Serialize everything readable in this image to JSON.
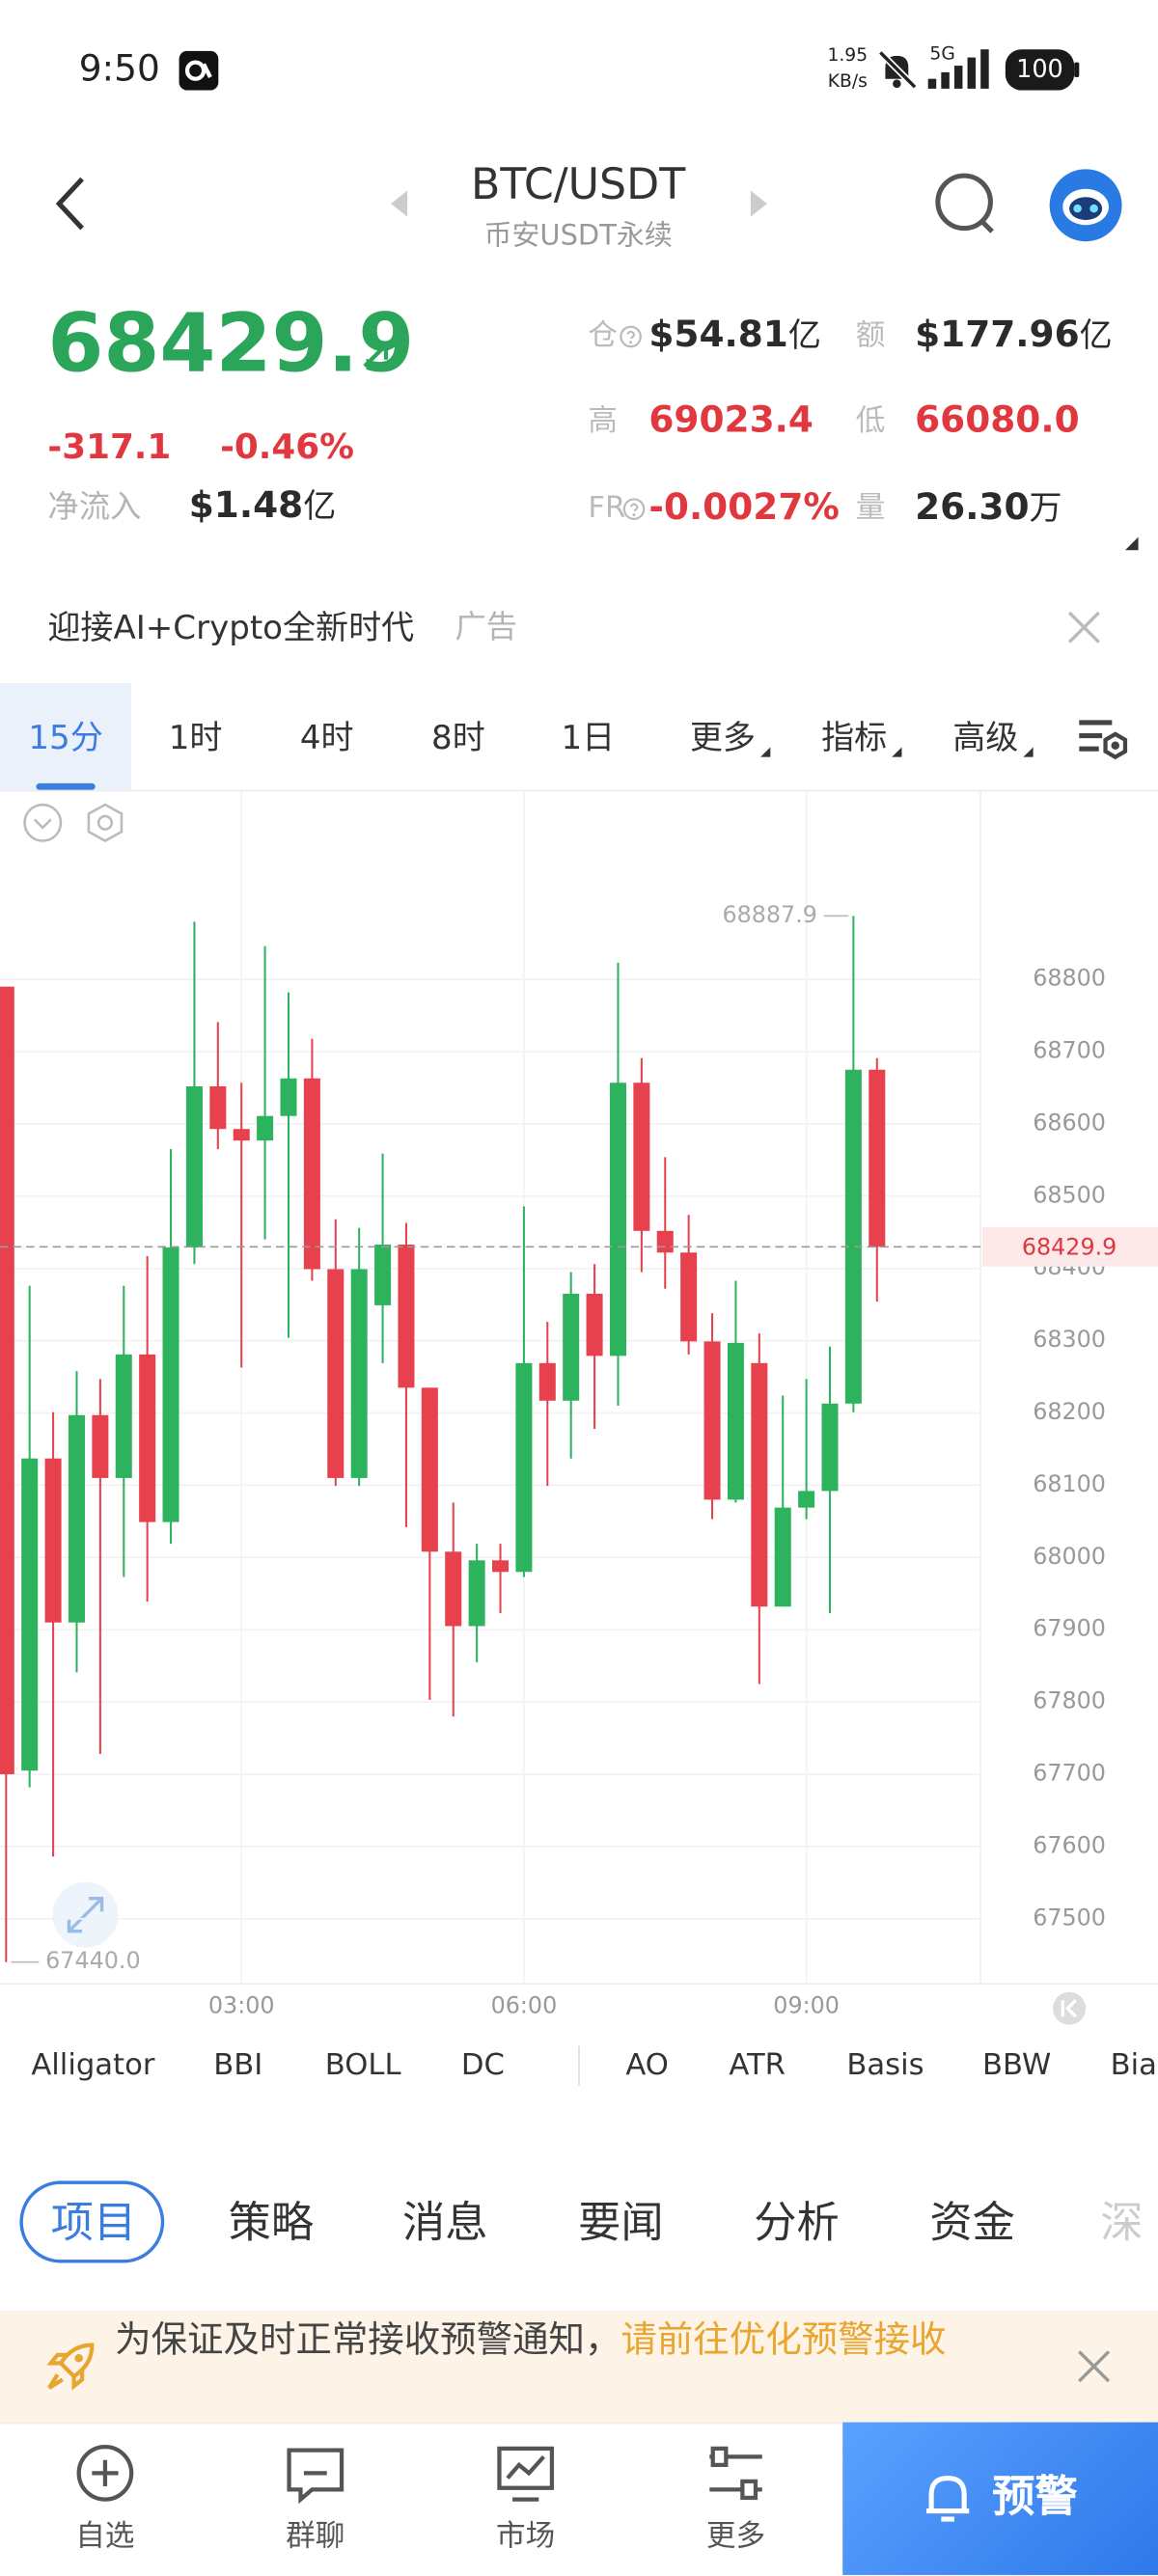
{
  "status_bar": {
    "time": "9:50",
    "net_speed": "1.95",
    "net_unit": "KB/s",
    "network": "5G",
    "battery": "100"
  },
  "header": {
    "pair": "BTC/USDT",
    "subtitle": "币安USDT永续"
  },
  "price": {
    "last": "68429.9",
    "change": "-317.1",
    "change_pct": "-0.46%",
    "net_inflow_label": "净流入",
    "net_inflow_value": "$1.48",
    "net_inflow_unit": "亿"
  },
  "stats": [
    {
      "label": "仓",
      "value": "$54.81",
      "unit": "亿"
    },
    {
      "label": "额",
      "value": "$177.96",
      "unit": "亿"
    },
    {
      "label": "高",
      "value": "69023.4"
    },
    {
      "label": "低",
      "value": "66080.0"
    },
    {
      "label": "FR",
      "value": "-0.0027%"
    },
    {
      "label": "量",
      "value": "26.30",
      "unit": "万"
    }
  ],
  "ad": {
    "text": "迎接AI+Crypto全新时代",
    "tag": "广告"
  },
  "timeframes": [
    "15分",
    "1时",
    "4时",
    "8时",
    "1日",
    "更多",
    "指标",
    "高级"
  ],
  "chart_data": {
    "type": "candlestick",
    "categories": [
      null,
      null,
      null,
      null,
      null,
      null,
      null,
      null,
      null,
      null,
      "03:00",
      null,
      null,
      null,
      null,
      null,
      null,
      null,
      null,
      null,
      null,
      null,
      "06:00",
      null,
      null,
      null,
      null,
      null,
      null,
      null,
      null,
      null,
      null,
      null,
      "09:00",
      null,
      null,
      null
    ],
    "open": [
      68790,
      67705,
      68137,
      67910,
      68197,
      68110,
      68281,
      68049,
      68429,
      68652,
      68593,
      68577,
      68611,
      68663,
      68399,
      68110,
      68349,
      68433,
      68235,
      68008,
      67905,
      67996,
      67980,
      68269,
      68217,
      68365,
      68279,
      68657,
      68452,
      68422,
      68299,
      68080,
      68269,
      67932,
      68069,
      68092,
      68213,
      68675
    ],
    "high": [
      68790,
      68376,
      68201,
      68258,
      68247,
      68376,
      68417,
      68565,
      68880,
      68741,
      68657,
      68846,
      68782,
      68718,
      68468,
      68456,
      68559,
      68463,
      68235,
      68076,
      68019,
      68019,
      68486,
      68326,
      68395,
      68406,
      68823,
      68691,
      68554,
      68474,
      68338,
      68383,
      68310,
      68224,
      68247,
      68292,
      68887.9,
      68691
    ],
    "low": [
      67440,
      67682,
      67586,
      67841,
      67728,
      67973,
      67939,
      68019,
      68406,
      68565,
      68263,
      68440,
      68304,
      68383,
      68099,
      68099,
      68269,
      68042,
      67803,
      67780,
      67855,
      67923,
      67973,
      68099,
      68137,
      68178,
      68210,
      68395,
      68372,
      68281,
      68053,
      68076,
      67825,
      67932,
      68053,
      67923,
      68201,
      68354
    ],
    "close": [
      67700,
      68137,
      67910,
      68197,
      68110,
      68281,
      68049,
      68429,
      68652,
      68593,
      68577,
      68611,
      68663,
      68399,
      68110,
      68399,
      68433,
      68235,
      68008,
      67905,
      67996,
      67980,
      68269,
      68217,
      68365,
      68279,
      68657,
      68452,
      68422,
      68299,
      68080,
      68297,
      67932,
      68069,
      68092,
      68213,
      68675,
      68429.9
    ],
    "up_color": "#2db35d",
    "down_color": "#e8414e",
    "ylim": [
      67410,
      69060
    ],
    "yticks": [
      67500,
      67600,
      67700,
      67800,
      67900,
      68000,
      68100,
      68200,
      68300,
      68400,
      68500,
      68600,
      68700,
      68800
    ],
    "grid": true,
    "max_marker": {
      "value": 68887.9,
      "label": "68887.9"
    },
    "min_marker": {
      "value": 67440,
      "label": "67440.0"
    },
    "last_price": {
      "value": 68429.9,
      "label": "68429.9"
    }
  },
  "indicators": [
    "Alligator",
    "BBI",
    "BOLL",
    "DC",
    "AO",
    "ATR",
    "Basis",
    "BBW",
    "Bias"
  ],
  "sections": [
    "项目",
    "策略",
    "消息",
    "要闻",
    "分析",
    "资金",
    "深"
  ],
  "notice": {
    "text": "为保证及时正常接收预警通知，",
    "link": "请前往优化预警接收"
  },
  "bottom_nav": [
    "自选",
    "群聊",
    "市场",
    "更多"
  ],
  "alert_button": "预警"
}
